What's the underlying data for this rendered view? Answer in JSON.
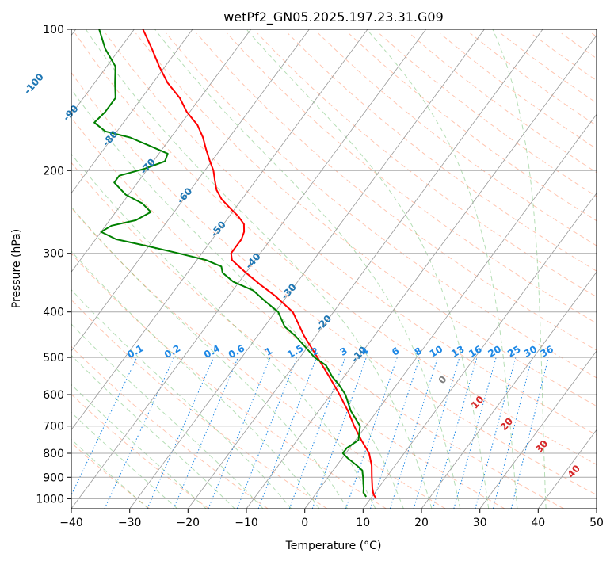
{
  "chart_data": {
    "type": "line",
    "chart_kind": "skew-T log-P sounding",
    "title": "wetPf2_GN05.2025.197.23.31.G09",
    "xlabel": "Temperature (°C)",
    "ylabel": "Pressure (hPa)",
    "xlim": [
      -40,
      50
    ],
    "ylim": [
      1050,
      100
    ],
    "y_scale": "log",
    "grid": true,
    "x_ticks": [
      -40,
      -30,
      -20,
      -10,
      0,
      10,
      20,
      30,
      40,
      50
    ],
    "y_ticks": [
      100,
      200,
      300,
      400,
      500,
      600,
      700,
      800,
      900,
      1000
    ],
    "isotherm_labels": [
      "-100",
      "-90",
      "-80",
      "-70",
      "-60",
      "-50",
      "-40",
      "-30",
      "-20",
      "-10"
    ],
    "mixing_ratio_labels": [
      "0.1",
      "0.2",
      "0.4",
      "0.6",
      "1",
      "1.5",
      "2",
      "3",
      "4",
      "6",
      "8",
      "10",
      "13",
      "16",
      "20",
      "25",
      "30",
      "36"
    ],
    "wet_adiabat_labels": [
      "0",
      "10",
      "20",
      "30",
      "40"
    ],
    "colors": {
      "temperature": "#ff0000",
      "dewpoint": "#008000",
      "isotherm_label": "#1f77b4",
      "mixing_ratio": "#1e88e5",
      "wet_adiabat_label": "#d62728",
      "zero_label": "#808080",
      "dry_adiabat": "#ff7f50",
      "moist_adiabat": "#2ca02c"
    },
    "series": [
      {
        "key": "temperature",
        "pressure": [
          1000,
          980,
          950,
          900,
          850,
          800,
          750,
          700,
          650,
          600,
          550,
          500,
          450,
          400,
          370,
          350,
          330,
          310,
          300,
          290,
          280,
          270,
          260,
          250,
          240,
          230,
          220,
          210,
          200,
          190,
          180,
          170,
          160,
          150,
          140,
          130,
          120,
          110,
          100
        ],
        "temp": [
          11.0,
          10.0,
          9.0,
          7.5,
          6.0,
          4.0,
          1.0,
          -2.0,
          -5.0,
          -8.5,
          -12.5,
          -17.0,
          -22.0,
          -27.0,
          -32.0,
          -36.0,
          -40.0,
          -44.0,
          -45.0,
          -45.0,
          -45.0,
          -45.5,
          -46.5,
          -48.5,
          -51.0,
          -53.5,
          -55.5,
          -57.0,
          -58.5,
          -60.5,
          -62.5,
          -64.5,
          -67.0,
          -70.5,
          -73.5,
          -77.5,
          -81.0,
          -84.5,
          -88.5
        ]
      },
      {
        "key": "dewpoint",
        "pressure": [
          990,
          970,
          950,
          900,
          870,
          850,
          820,
          800,
          780,
          750,
          700,
          650,
          600,
          570,
          550,
          520,
          500,
          470,
          450,
          430,
          400,
          380,
          360,
          345,
          330,
          320,
          310,
          300,
          290,
          280,
          270,
          262,
          255,
          245,
          235,
          225,
          212,
          205,
          198,
          191,
          184,
          178,
          170,
          165,
          158,
          150,
          140,
          130,
          120,
          110,
          100
        ],
        "temp": [
          9.0,
          8.0,
          7.5,
          6.0,
          5.0,
          3.5,
          1.0,
          -0.5,
          -0.5,
          0.5,
          -1.0,
          -4.5,
          -7.5,
          -10.0,
          -12.0,
          -14.5,
          -17.5,
          -21.0,
          -23.5,
          -26.5,
          -29.5,
          -33.0,
          -36.5,
          -41.0,
          -44.0,
          -45.0,
          -48.5,
          -54.0,
          -60.0,
          -66.5,
          -70.0,
          -69.0,
          -65.5,
          -64.0,
          -66.5,
          -70.5,
          -74.0,
          -74.0,
          -70.5,
          -68.0,
          -68.5,
          -72.0,
          -77.0,
          -82.0,
          -85.0,
          -84.5,
          -84.5,
          -86.5,
          -88.5,
          -92.5,
          -96.0
        ]
      }
    ]
  }
}
